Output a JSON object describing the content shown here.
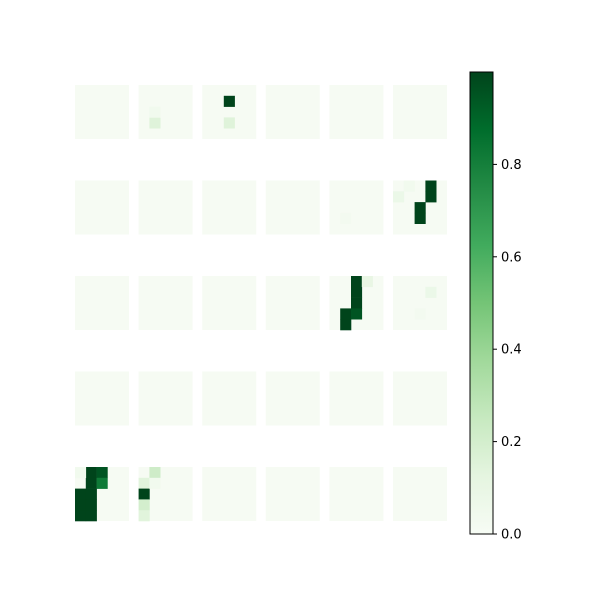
{
  "chart_data": {
    "type": "heatmap",
    "title": "",
    "colormap": {
      "name": "Greens",
      "stops": [
        "#f7fcf5",
        "#e5f5e0",
        "#c7e9c0",
        "#a1d99b",
        "#74c476",
        "#41ab5d",
        "#238b45",
        "#006d2c",
        "#00441b"
      ]
    },
    "value_range": [
      0,
      1
    ],
    "colorbar": {
      "ticks": [
        0.0,
        0.2,
        0.4,
        0.6,
        0.8
      ],
      "tick_labels": [
        "0.0",
        "0.2",
        "0.4",
        "0.6",
        "0.8"
      ]
    },
    "grid": {
      "rows": 5,
      "cols": 6,
      "cell_resolution": 5
    },
    "panels": [
      {
        "row": 0,
        "col": 1,
        "cells": [
          {
            "r": 3,
            "c": 1,
            "v": 0.15
          },
          {
            "r": 2,
            "c": 1,
            "v": 0.04
          }
        ]
      },
      {
        "row": 0,
        "col": 2,
        "cells": [
          {
            "r": 1,
            "c": 2,
            "v": 1.0
          },
          {
            "r": 3,
            "c": 2,
            "v": 0.15
          }
        ]
      },
      {
        "row": 1,
        "col": 4,
        "cells": [
          {
            "r": 3,
            "c": 1,
            "v": 0.03
          }
        ]
      },
      {
        "row": 1,
        "col": 5,
        "cells": [
          {
            "r": 0,
            "c": 3,
            "v": 1.0
          },
          {
            "r": 1,
            "c": 3,
            "v": 1.0
          },
          {
            "r": 2,
            "c": 2,
            "v": 1.0
          },
          {
            "r": 3,
            "c": 2,
            "v": 1.0
          },
          {
            "r": 1,
            "c": 0,
            "v": 0.08
          },
          {
            "r": 0,
            "c": 1,
            "v": 0.04
          }
        ]
      },
      {
        "row": 2,
        "col": 4,
        "cells": [
          {
            "r": 0,
            "c": 2,
            "v": 1.0
          },
          {
            "r": 1,
            "c": 2,
            "v": 1.0
          },
          {
            "r": 2,
            "c": 2,
            "v": 1.0
          },
          {
            "r": 3,
            "c": 1,
            "v": 1.0
          },
          {
            "r": 3,
            "c": 2,
            "v": 0.95
          },
          {
            "r": 4,
            "c": 1,
            "v": 1.0
          },
          {
            "r": 0,
            "c": 3,
            "v": 0.1
          }
        ]
      },
      {
        "row": 2,
        "col": 5,
        "cells": [
          {
            "r": 1,
            "c": 3,
            "v": 0.08
          },
          {
            "r": 3,
            "c": 2,
            "v": 0.03
          }
        ]
      },
      {
        "row": 4,
        "col": 0,
        "cells": [
          {
            "r": 0,
            "c": 1,
            "v": 1.0
          },
          {
            "r": 0,
            "c": 2,
            "v": 0.95
          },
          {
            "r": 1,
            "c": 1,
            "v": 1.0
          },
          {
            "r": 1,
            "c": 2,
            "v": 0.82
          },
          {
            "r": 2,
            "c": 0,
            "v": 1.0
          },
          {
            "r": 2,
            "c": 1,
            "v": 1.0
          },
          {
            "r": 3,
            "c": 0,
            "v": 1.0
          },
          {
            "r": 3,
            "c": 1,
            "v": 1.0
          },
          {
            "r": 4,
            "c": 0,
            "v": 1.0
          },
          {
            "r": 4,
            "c": 1,
            "v": 1.0
          },
          {
            "r": 0,
            "c": 0,
            "v": 0.04
          }
        ]
      },
      {
        "row": 4,
        "col": 1,
        "cells": [
          {
            "r": 0,
            "c": 1,
            "v": 0.22
          },
          {
            "r": 1,
            "c": 0,
            "v": 0.14
          },
          {
            "r": 2,
            "c": 0,
            "v": 1.0
          },
          {
            "r": 3,
            "c": 0,
            "v": 0.2
          },
          {
            "r": 4,
            "c": 0,
            "v": 0.14
          },
          {
            "r": 1,
            "c": 1,
            "v": 0.04
          }
        ]
      }
    ]
  }
}
